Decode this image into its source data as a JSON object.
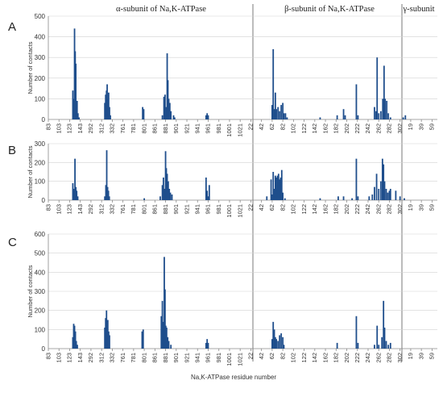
{
  "regions": [
    {
      "key": "alpha",
      "label": "α-subunit  of Na,K-ATPase"
    },
    {
      "key": "beta",
      "label": "β-subunit  of Na,K-ATPase"
    },
    {
      "key": "gamma",
      "label": "γ-subunit"
    }
  ],
  "x_axis_title": "Na,K-ATPase residue number",
  "x_tick_labels": [
    "83",
    "103",
    "123",
    "143",
    "292",
    "312",
    "332",
    "761",
    "781",
    "801",
    "861",
    "881",
    "901",
    "921",
    "941",
    "961",
    "981",
    "1001",
    "1021",
    "22",
    "42",
    "62",
    "82",
    "102",
    "122",
    "142",
    "162",
    "182",
    "202",
    "222",
    "242",
    "262",
    "282",
    "302",
    "19",
    "39",
    "59"
  ],
  "chart_data": [
    {
      "panel": "A",
      "type": "bar",
      "ylabel": "Number of contacts",
      "ylim": [
        0,
        500
      ],
      "yticks": [
        0,
        100,
        200,
        300,
        400,
        500
      ],
      "grid": true,
      "bars": [
        {
          "x": 2.3,
          "y": 140
        },
        {
          "x": 2.38,
          "y": 100
        },
        {
          "x": 2.46,
          "y": 440
        },
        {
          "x": 2.52,
          "y": 330
        },
        {
          "x": 2.58,
          "y": 270
        },
        {
          "x": 2.64,
          "y": 60
        },
        {
          "x": 2.7,
          "y": 90
        },
        {
          "x": 2.78,
          "y": 30
        },
        {
          "x": 2.88,
          "y": 10
        },
        {
          "x": 5.3,
          "y": 80
        },
        {
          "x": 5.38,
          "y": 120
        },
        {
          "x": 5.46,
          "y": 140
        },
        {
          "x": 5.52,
          "y": 170
        },
        {
          "x": 5.58,
          "y": 100
        },
        {
          "x": 5.66,
          "y": 130
        },
        {
          "x": 5.74,
          "y": 60
        },
        {
          "x": 5.82,
          "y": 20
        },
        {
          "x": 8.85,
          "y": 60
        },
        {
          "x": 8.95,
          "y": 50
        },
        {
          "x": 10.7,
          "y": 20
        },
        {
          "x": 10.85,
          "y": 110
        },
        {
          "x": 10.95,
          "y": 120
        },
        {
          "x": 11.05,
          "y": 60
        },
        {
          "x": 11.15,
          "y": 320
        },
        {
          "x": 11.22,
          "y": 190
        },
        {
          "x": 11.3,
          "y": 100
        },
        {
          "x": 11.4,
          "y": 80
        },
        {
          "x": 11.5,
          "y": 40
        },
        {
          "x": 11.75,
          "y": 20
        },
        {
          "x": 11.85,
          "y": 10
        },
        {
          "x": 14.8,
          "y": 20
        },
        {
          "x": 14.9,
          "y": 30
        },
        {
          "x": 15.0,
          "y": 20
        },
        {
          "x": 21.0,
          "y": 70
        },
        {
          "x": 21.1,
          "y": 340
        },
        {
          "x": 21.2,
          "y": 50
        },
        {
          "x": 21.3,
          "y": 130
        },
        {
          "x": 21.4,
          "y": 50
        },
        {
          "x": 21.55,
          "y": 60
        },
        {
          "x": 21.7,
          "y": 40
        },
        {
          "x": 21.85,
          "y": 70
        },
        {
          "x": 22.0,
          "y": 80
        },
        {
          "x": 22.1,
          "y": 30
        },
        {
          "x": 22.25,
          "y": 30
        },
        {
          "x": 22.4,
          "y": 10
        },
        {
          "x": 25.5,
          "y": 10
        },
        {
          "x": 27.1,
          "y": 20
        },
        {
          "x": 27.7,
          "y": 50
        },
        {
          "x": 27.85,
          "y": 20
        },
        {
          "x": 28.9,
          "y": 170
        },
        {
          "x": 29.05,
          "y": 20
        },
        {
          "x": 30.6,
          "y": 60
        },
        {
          "x": 30.75,
          "y": 40
        },
        {
          "x": 30.85,
          "y": 300
        },
        {
          "x": 31.0,
          "y": 30
        },
        {
          "x": 31.2,
          "y": 40
        },
        {
          "x": 31.38,
          "y": 100
        },
        {
          "x": 31.5,
          "y": 260
        },
        {
          "x": 31.6,
          "y": 100
        },
        {
          "x": 31.75,
          "y": 90
        },
        {
          "x": 31.9,
          "y": 30
        },
        {
          "x": 32.1,
          "y": 10
        },
        {
          "x": 33.3,
          "y": 10
        },
        {
          "x": 33.5,
          "y": 20
        }
      ]
    },
    {
      "panel": "B",
      "type": "bar",
      "ylabel": "Number of contacts",
      "ylim": [
        0,
        300
      ],
      "yticks": [
        0,
        100,
        200,
        300
      ],
      "grid": true,
      "bars": [
        {
          "x": 2.3,
          "y": 90
        },
        {
          "x": 2.4,
          "y": 60
        },
        {
          "x": 2.5,
          "y": 220
        },
        {
          "x": 2.58,
          "y": 70
        },
        {
          "x": 2.66,
          "y": 50
        },
        {
          "x": 2.76,
          "y": 20
        },
        {
          "x": 5.3,
          "y": 20
        },
        {
          "x": 5.4,
          "y": 80
        },
        {
          "x": 5.48,
          "y": 265
        },
        {
          "x": 5.56,
          "y": 70
        },
        {
          "x": 5.64,
          "y": 50
        },
        {
          "x": 5.72,
          "y": 20
        },
        {
          "x": 9.0,
          "y": 10
        },
        {
          "x": 10.5,
          "y": 20
        },
        {
          "x": 10.7,
          "y": 80
        },
        {
          "x": 10.8,
          "y": 120
        },
        {
          "x": 10.9,
          "y": 60
        },
        {
          "x": 11.0,
          "y": 260
        },
        {
          "x": 11.07,
          "y": 170
        },
        {
          "x": 11.15,
          "y": 140
        },
        {
          "x": 11.25,
          "y": 100
        },
        {
          "x": 11.35,
          "y": 60
        },
        {
          "x": 11.45,
          "y": 40
        },
        {
          "x": 11.6,
          "y": 30
        },
        {
          "x": 14.8,
          "y": 120
        },
        {
          "x": 14.9,
          "y": 50
        },
        {
          "x": 15.0,
          "y": 20
        },
        {
          "x": 15.1,
          "y": 80
        },
        {
          "x": 20.5,
          "y": 20
        },
        {
          "x": 20.9,
          "y": 110
        },
        {
          "x": 21.0,
          "y": 30
        },
        {
          "x": 21.1,
          "y": 150
        },
        {
          "x": 21.2,
          "y": 60
        },
        {
          "x": 21.3,
          "y": 130
        },
        {
          "x": 21.4,
          "y": 120
        },
        {
          "x": 21.5,
          "y": 130
        },
        {
          "x": 21.6,
          "y": 140
        },
        {
          "x": 21.7,
          "y": 110
        },
        {
          "x": 21.8,
          "y": 120
        },
        {
          "x": 21.9,
          "y": 160
        },
        {
          "x": 22.0,
          "y": 40
        },
        {
          "x": 22.2,
          "y": 10
        },
        {
          "x": 25.5,
          "y": 10
        },
        {
          "x": 27.2,
          "y": 20
        },
        {
          "x": 27.7,
          "y": 20
        },
        {
          "x": 28.5,
          "y": 10
        },
        {
          "x": 28.9,
          "y": 220
        },
        {
          "x": 29.05,
          "y": 20
        },
        {
          "x": 30.1,
          "y": 20
        },
        {
          "x": 30.4,
          "y": 30
        },
        {
          "x": 30.6,
          "y": 70
        },
        {
          "x": 30.8,
          "y": 140
        },
        {
          "x": 31.0,
          "y": 60
        },
        {
          "x": 31.2,
          "y": 100
        },
        {
          "x": 31.35,
          "y": 220
        },
        {
          "x": 31.45,
          "y": 190
        },
        {
          "x": 31.55,
          "y": 100
        },
        {
          "x": 31.7,
          "y": 60
        },
        {
          "x": 31.85,
          "y": 40
        },
        {
          "x": 32.0,
          "y": 50
        },
        {
          "x": 32.1,
          "y": 60
        },
        {
          "x": 32.6,
          "y": 50
        },
        {
          "x": 33.0,
          "y": 20
        },
        {
          "x": 33.4,
          "y": 10
        }
      ]
    },
    {
      "panel": "C",
      "type": "bar",
      "ylabel": "Number of contacts",
      "ylim": [
        0,
        600
      ],
      "yticks": [
        0,
        100,
        200,
        300,
        400,
        500,
        600
      ],
      "grid": true,
      "bars": [
        {
          "x": 2.3,
          "y": 60
        },
        {
          "x": 2.38,
          "y": 130
        },
        {
          "x": 2.46,
          "y": 120
        },
        {
          "x": 2.54,
          "y": 90
        },
        {
          "x": 2.62,
          "y": 40
        },
        {
          "x": 2.72,
          "y": 20
        },
        {
          "x": 5.3,
          "y": 110
        },
        {
          "x": 5.38,
          "y": 160
        },
        {
          "x": 5.46,
          "y": 200
        },
        {
          "x": 5.52,
          "y": 130
        },
        {
          "x": 5.58,
          "y": 150
        },
        {
          "x": 5.66,
          "y": 90
        },
        {
          "x": 5.74,
          "y": 70
        },
        {
          "x": 8.8,
          "y": 90
        },
        {
          "x": 8.9,
          "y": 100
        },
        {
          "x": 10.6,
          "y": 170
        },
        {
          "x": 10.7,
          "y": 250
        },
        {
          "x": 10.8,
          "y": 140
        },
        {
          "x": 10.88,
          "y": 480
        },
        {
          "x": 10.95,
          "y": 310
        },
        {
          "x": 11.02,
          "y": 120
        },
        {
          "x": 11.1,
          "y": 110
        },
        {
          "x": 11.2,
          "y": 60
        },
        {
          "x": 11.3,
          "y": 40
        },
        {
          "x": 11.5,
          "y": 20
        },
        {
          "x": 14.8,
          "y": 30
        },
        {
          "x": 14.9,
          "y": 50
        },
        {
          "x": 15.0,
          "y": 30
        },
        {
          "x": 21.0,
          "y": 50
        },
        {
          "x": 21.1,
          "y": 140
        },
        {
          "x": 21.2,
          "y": 100
        },
        {
          "x": 21.3,
          "y": 60
        },
        {
          "x": 21.4,
          "y": 50
        },
        {
          "x": 21.55,
          "y": 40
        },
        {
          "x": 21.7,
          "y": 70
        },
        {
          "x": 21.85,
          "y": 80
        },
        {
          "x": 22.0,
          "y": 60
        },
        {
          "x": 22.1,
          "y": 20
        },
        {
          "x": 27.1,
          "y": 30
        },
        {
          "x": 28.9,
          "y": 170
        },
        {
          "x": 29.05,
          "y": 30
        },
        {
          "x": 30.6,
          "y": 20
        },
        {
          "x": 30.85,
          "y": 120
        },
        {
          "x": 31.0,
          "y": 20
        },
        {
          "x": 31.3,
          "y": 60
        },
        {
          "x": 31.45,
          "y": 250
        },
        {
          "x": 31.55,
          "y": 110
        },
        {
          "x": 31.7,
          "y": 40
        },
        {
          "x": 31.9,
          "y": 20
        },
        {
          "x": 32.1,
          "y": 30
        }
      ]
    }
  ]
}
